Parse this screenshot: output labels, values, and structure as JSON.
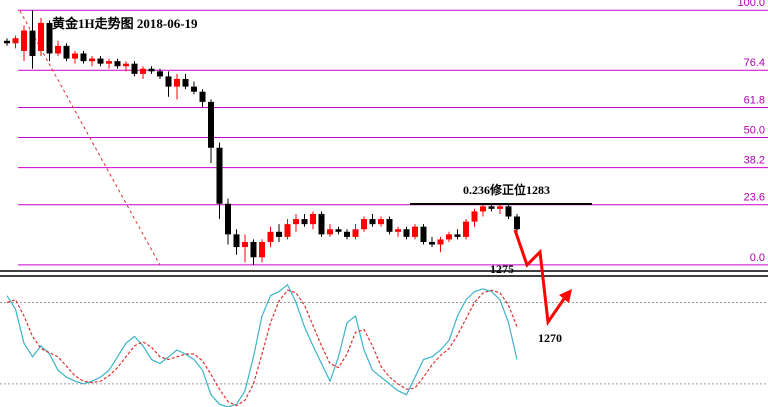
{
  "chart_data": [
    {
      "type": "candlestick",
      "title": "黄金1H走势图 2018-06-19",
      "open": [
        88,
        87,
        84,
        92,
        84,
        95,
        83,
        86,
        81,
        83,
        80,
        81,
        79,
        80,
        78,
        79,
        75,
        77,
        76,
        74,
        70,
        73,
        70,
        68,
        64,
        46,
        24,
        12,
        7,
        9,
        3,
        9,
        13,
        11,
        16,
        18,
        16,
        20,
        12,
        14,
        13,
        11,
        14,
        18,
        16,
        18,
        13,
        14,
        11,
        15,
        9,
        8,
        10,
        12,
        11,
        17,
        21,
        23,
        22,
        23,
        19
      ],
      "high": [
        89,
        90,
        94,
        100,
        97,
        96,
        88,
        87,
        84,
        84,
        82,
        82,
        81,
        81,
        80,
        80,
        78,
        78,
        77,
        76,
        75,
        75,
        72,
        69,
        65,
        48,
        26,
        14,
        12,
        10,
        10,
        15,
        16,
        18,
        20,
        20,
        21,
        21,
        16,
        15,
        14,
        16,
        19,
        20,
        19,
        19,
        15,
        15,
        16,
        16,
        11,
        11,
        13,
        14,
        18,
        22,
        24,
        24,
        24,
        24,
        20
      ],
      "low": [
        86,
        85,
        80,
        77,
        82,
        80,
        82,
        80,
        79,
        79,
        78,
        78,
        77,
        77,
        76,
        74,
        73,
        75,
        73,
        66,
        65,
        69,
        67,
        62,
        40,
        18,
        8,
        4,
        1,
        0,
        1,
        7,
        9,
        10,
        13,
        15,
        14,
        11,
        11,
        12,
        10,
        10,
        13,
        15,
        15,
        12,
        11,
        10,
        10,
        8,
        7,
        5,
        9,
        10,
        10,
        15,
        19,
        21,
        20,
        18,
        13
      ],
      "close": [
        87,
        89,
        92,
        82,
        95,
        83,
        86,
        81,
        83,
        80,
        81,
        79,
        80,
        78,
        79,
        75,
        77,
        76,
        74,
        70,
        73,
        70,
        68,
        64,
        46,
        24,
        12,
        7,
        9,
        3,
        9,
        13,
        11,
        16,
        18,
        16,
        20,
        12,
        14,
        13,
        11,
        14,
        18,
        16,
        18,
        13,
        14,
        11,
        15,
        9,
        8,
        10,
        12,
        11,
        17,
        21,
        23,
        22,
        23,
        19,
        14
      ],
      "ylim": [
        -2,
        104
      ],
      "yticks": [
        {
          "value": 0,
          "label": "0.0"
        },
        23.6,
        38.2,
        {
          "value": 50,
          "label": "50.0"
        },
        61.8,
        76.4,
        {
          "value": 100,
          "label": "100.0"
        }
      ],
      "up_color": "#ff0000",
      "down_color": "#000000",
      "grid_color": "#cc00cc",
      "annotations": [
        "0.236修正位1283",
        "1275",
        "1270"
      ]
    },
    {
      "type": "line",
      "series": [
        {
          "color": "#3cb4c8",
          "values": [
            85,
            75,
            50,
            40,
            48,
            42,
            30,
            25,
            22,
            20,
            22,
            25,
            30,
            40,
            50,
            55,
            48,
            38,
            35,
            40,
            45,
            42,
            38,
            30,
            12,
            5,
            3,
            5,
            15,
            40,
            70,
            85,
            88,
            93,
            80,
            62,
            48,
            35,
            22,
            40,
            65,
            70,
            45,
            30,
            25,
            20,
            15,
            12,
            25,
            38,
            40,
            45,
            52,
            70,
            82,
            88,
            90,
            88,
            82,
            65,
            38
          ]
        },
        {
          "color": "#e03030",
          "values": [
            80,
            82,
            70,
            55,
            46,
            43,
            40,
            33,
            26,
            22,
            21,
            22,
            26,
            32,
            40,
            48,
            51,
            47,
            40,
            38,
            40,
            42,
            42,
            37,
            27,
            16,
            7,
            4,
            8,
            20,
            42,
            65,
            81,
            89,
            87,
            78,
            63,
            48,
            35,
            32,
            42,
            58,
            60,
            48,
            33,
            25,
            20,
            16,
            17,
            25,
            34,
            41,
            46,
            56,
            68,
            80,
            87,
            89,
            87,
            78,
            62
          ]
        }
      ],
      "ylim": [
        3,
        98
      ],
      "levels": [
        20,
        80
      ]
    }
  ]
}
